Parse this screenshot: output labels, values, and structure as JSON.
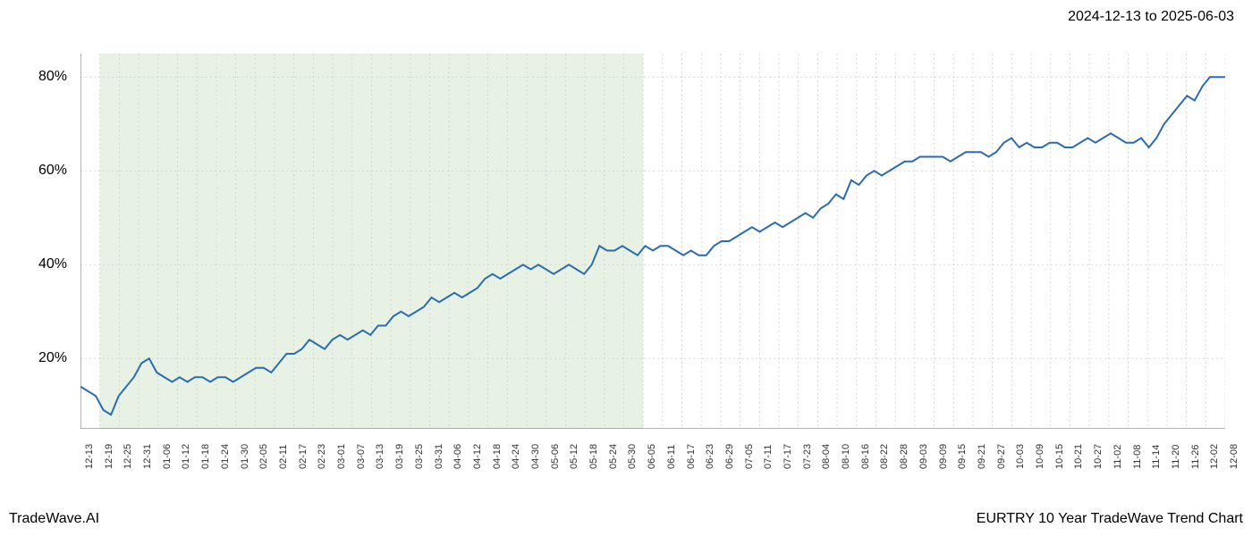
{
  "date_range": "2024-12-13 to 2025-06-03",
  "footer_left": "TradeWave.AI",
  "footer_right": "EURTRY 10 Year TradeWave Trend Chart",
  "chart": {
    "type": "line",
    "line_color": "#2b6cb0",
    "line_width": 2,
    "background_color": "#ffffff",
    "highlight_fill": "#d4e8d0",
    "highlight_opacity": 0.55,
    "highlight_start_index": 1,
    "highlight_end_index": 29,
    "grid_color": "#d0d0d0",
    "grid_dash": "2,3",
    "axis_color": "#666666",
    "ylim": [
      5,
      85
    ],
    "yticks": [
      20,
      40,
      60,
      80
    ],
    "ytick_labels": [
      "20%",
      "40%",
      "60%",
      "80%"
    ],
    "x_labels": [
      "12-13",
      "12-19",
      "12-25",
      "12-31",
      "01-06",
      "01-12",
      "01-18",
      "01-24",
      "01-30",
      "02-05",
      "02-11",
      "02-17",
      "02-23",
      "03-01",
      "03-07",
      "03-13",
      "03-19",
      "03-25",
      "03-31",
      "04-06",
      "04-12",
      "04-18",
      "04-24",
      "04-30",
      "05-06",
      "05-12",
      "05-18",
      "05-24",
      "05-30",
      "06-05",
      "06-11",
      "06-17",
      "06-23",
      "06-29",
      "07-05",
      "07-11",
      "07-17",
      "07-23",
      "08-04",
      "08-10",
      "08-16",
      "08-22",
      "08-28",
      "09-03",
      "09-09",
      "09-15",
      "09-21",
      "09-27",
      "10-03",
      "10-09",
      "10-15",
      "10-21",
      "10-27",
      "11-02",
      "11-08",
      "11-14",
      "11-20",
      "11-26",
      "12-02",
      "12-08"
    ],
    "series": [
      14,
      13,
      12,
      9,
      8,
      12,
      14,
      16,
      19,
      20,
      17,
      16,
      15,
      16,
      15,
      16,
      16,
      15,
      16,
      16,
      15,
      16,
      17,
      18,
      18,
      17,
      19,
      21,
      21,
      22,
      24,
      23,
      22,
      24,
      25,
      24,
      25,
      26,
      25,
      27,
      27,
      29,
      30,
      29,
      30,
      31,
      33,
      32,
      33,
      34,
      33,
      34,
      35,
      37,
      38,
      37,
      38,
      39,
      40,
      39,
      40,
      39,
      38,
      39,
      40,
      39,
      38,
      40,
      44,
      43,
      43,
      44,
      43,
      42,
      44,
      43,
      44,
      44,
      43,
      42,
      43,
      42,
      42,
      44,
      45,
      45,
      46,
      47,
      48,
      47,
      48,
      49,
      48,
      49,
      50,
      51,
      50,
      52,
      53,
      55,
      54,
      58,
      57,
      59,
      60,
      59,
      60,
      61,
      62,
      62,
      63,
      63,
      63,
      63,
      62,
      63,
      64,
      64,
      64,
      63,
      64,
      66,
      67,
      65,
      66,
      65,
      65,
      66,
      66,
      65,
      65,
      66,
      67,
      66,
      67,
      68,
      67,
      66,
      66,
      67,
      65,
      67,
      70,
      72,
      74,
      76,
      75,
      78,
      80,
      80,
      80
    ],
    "x_label_fontsize": 11,
    "y_label_fontsize": 16,
    "title_fontsize": 16
  }
}
